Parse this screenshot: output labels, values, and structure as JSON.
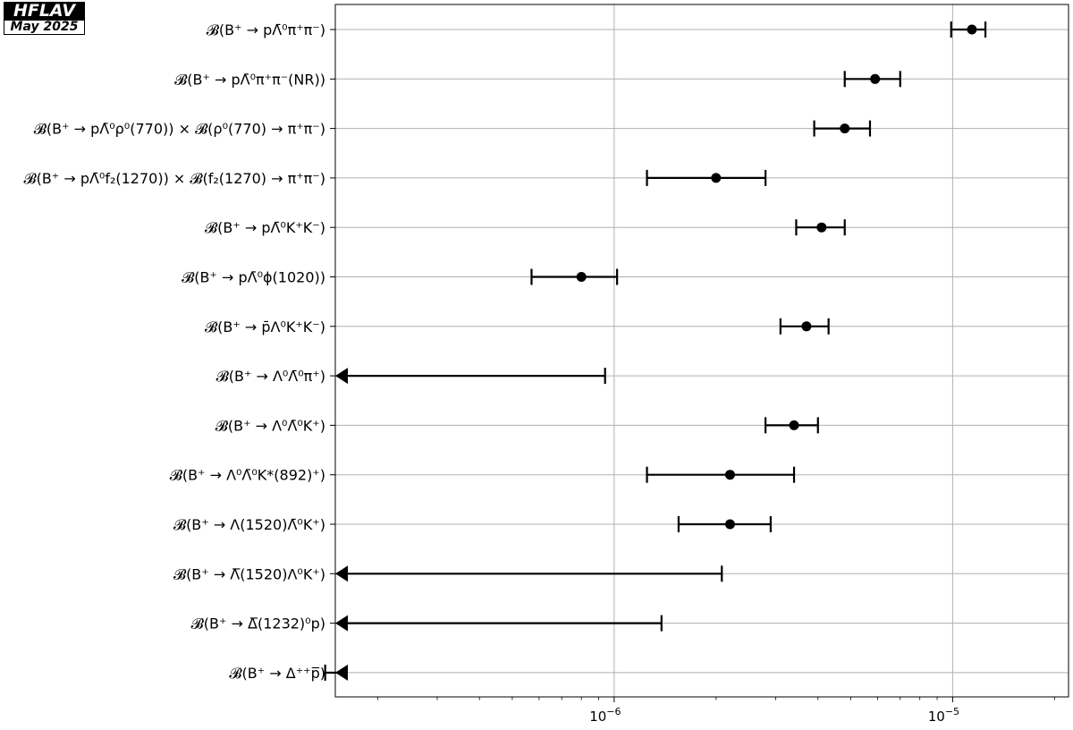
{
  "badge": {
    "title": "HFLAV",
    "date": "May 2025"
  },
  "chart_data": {
    "type": "scatter",
    "orientation": "horizontal",
    "x_scale": "log",
    "xlim": [
      1.5e-07,
      2.2e-05
    ],
    "x_ticks": [
      {
        "value": 1e-06,
        "base": "10",
        "exp": "−6"
      },
      {
        "value": 1e-05,
        "base": "10",
        "exp": "−5"
      }
    ],
    "grid": true,
    "colors": {
      "marker": "#000000",
      "grid": "#b0b0b0"
    },
    "measurements": [
      {
        "label": "𝓑(B⁺ → pΛ̄⁰π⁺π⁻)",
        "kind": "value",
        "value": 1.14e-05,
        "low": 9.9e-06,
        "high": 1.25e-05
      },
      {
        "label": "𝓑(B⁺ → pΛ̄⁰π⁺π⁻(NR))",
        "kind": "value",
        "value": 5.9e-06,
        "low": 4.8e-06,
        "high": 7e-06
      },
      {
        "label": "𝓑(B⁺ → pΛ̄⁰ρ⁰(770)) × 𝓑(ρ⁰(770) → π⁺π⁻)",
        "kind": "value",
        "value": 4.8e-06,
        "low": 3.9e-06,
        "high": 5.7e-06
      },
      {
        "label": "𝓑(B⁺ → pΛ̄⁰f₂(1270)) × 𝓑(f₂(1270) → π⁺π⁻)",
        "kind": "value",
        "value": 2e-06,
        "low": 1.25e-06,
        "high": 2.8e-06
      },
      {
        "label": "𝓑(B⁺ → pΛ̄⁰K⁺K⁻)",
        "kind": "value",
        "value": 4.1e-06,
        "low": 3.45e-06,
        "high": 4.8e-06
      },
      {
        "label": "𝓑(B⁺ → pΛ̄⁰ϕ(1020))",
        "kind": "value",
        "value": 8e-07,
        "low": 5.7e-07,
        "high": 1.02e-06
      },
      {
        "label": "𝓑(B⁺ → p̄Λ⁰K⁺K⁻)",
        "kind": "value",
        "value": 3.7e-06,
        "low": 3.1e-06,
        "high": 4.3e-06
      },
      {
        "label": "𝓑(B⁺ → Λ⁰Λ̄⁰π⁺)",
        "kind": "upper_limit",
        "limit": 9.4e-07
      },
      {
        "label": "𝓑(B⁺ → Λ⁰Λ̄⁰K⁺)",
        "kind": "value",
        "value": 3.4e-06,
        "low": 2.8e-06,
        "high": 4e-06
      },
      {
        "label": "𝓑(B⁺ → Λ⁰Λ̄⁰K*(892)⁺)",
        "kind": "value",
        "value": 2.2e-06,
        "low": 1.25e-06,
        "high": 3.4e-06
      },
      {
        "label": "𝓑(B⁺ → Λ(1520)Λ̄⁰K⁺)",
        "kind": "value",
        "value": 2.2e-06,
        "low": 1.55e-06,
        "high": 2.9e-06
      },
      {
        "label": "𝓑(B⁺ → Λ̅(1520)Λ⁰K⁺)",
        "kind": "upper_limit",
        "limit": 2.08e-06
      },
      {
        "label": "𝓑(B⁺ → Δ̅(1232)⁰p)",
        "kind": "upper_limit",
        "limit": 1.38e-06
      },
      {
        "label": "𝓑(B⁺ → Δ⁺⁺p̅)",
        "kind": "upper_limit",
        "limit": 1.4e-07
      }
    ]
  }
}
